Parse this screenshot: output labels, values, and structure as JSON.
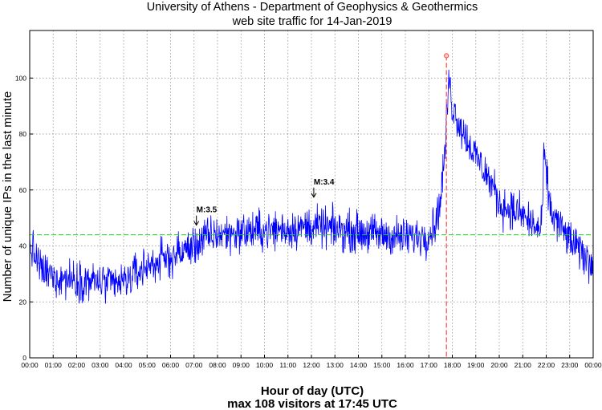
{
  "chart_data": {
    "type": "line",
    "title_line1": "University of Athens - Department of Geophysics & Geothermics",
    "title_line2": "web site traffic for 14-Jan-2019",
    "xlabel": "Hour of day (UTC)",
    "subtitle": "max 108 visitors at 17:45 UTC",
    "ylabel": "Number of unique IPs in the last minute",
    "ylim": [
      0,
      117
    ],
    "yticks": [
      0,
      20,
      40,
      60,
      80,
      100
    ],
    "xlim_hours": [
      0,
      24
    ],
    "xtick_labels": [
      "00:00",
      "01:00",
      "02:00",
      "03:00",
      "04:00",
      "05:00",
      "06:00",
      "07:00",
      "08:00",
      "09:00",
      "10:00",
      "11:00",
      "12:00",
      "13:00",
      "14:00",
      "15:00",
      "16:00",
      "17:00",
      "18:00",
      "19:00",
      "20:00",
      "21:00",
      "22:00",
      "23:00",
      "00:00"
    ],
    "grid": true,
    "average_line": 44,
    "max_point": {
      "hour": 17.75,
      "value": 108
    },
    "annotations": [
      {
        "label": "M:3.5",
        "hour": 7.1,
        "value": 52
      },
      {
        "label": "M:3.4",
        "hour": 12.1,
        "value": 62
      }
    ],
    "series_profile": {
      "name": "unique IPs per minute",
      "hours": [
        0,
        0.25,
        0.5,
        1,
        2,
        3,
        3.5,
        4,
        4.5,
        5,
        6,
        6.5,
        7,
        7.5,
        8,
        9,
        10,
        11,
        12,
        13,
        14,
        15,
        16,
        17,
        17.35,
        17.5,
        17.7,
        17.85,
        18,
        18.5,
        19,
        19.5,
        19.9,
        20,
        21,
        21.5,
        21.8,
        21.9,
        22,
        22.2,
        23,
        24
      ],
      "values": [
        40,
        36,
        31,
        29,
        28,
        27,
        26,
        27,
        30,
        33,
        36,
        38,
        40,
        43,
        44,
        45,
        45.5,
        46,
        47,
        46,
        45,
        44,
        43,
        44,
        50,
        57,
        75,
        100,
        90,
        80,
        72,
        65,
        58,
        55,
        51,
        47,
        45,
        72,
        66,
        52,
        42,
        33
      ],
      "noise_amplitude": 5,
      "color": "#0000ff"
    },
    "colors": {
      "series": "#0000ff",
      "average": "#22cc22",
      "max_marker": "#ff4444",
      "grid": "#888888"
    }
  }
}
